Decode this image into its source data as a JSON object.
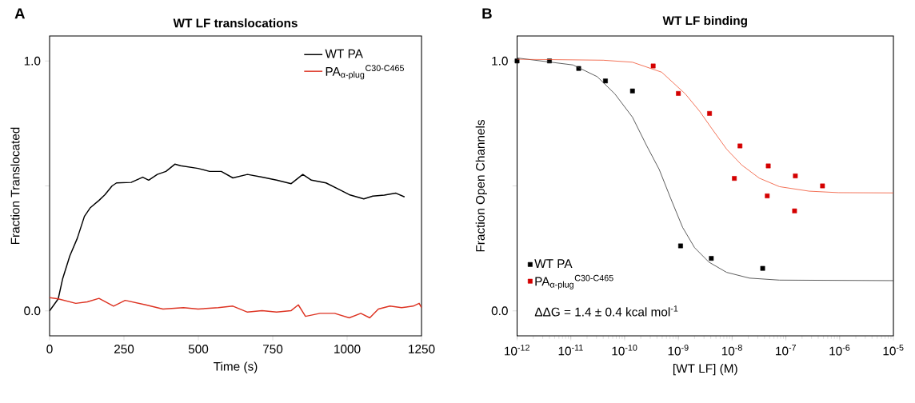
{
  "chart_data": [
    {
      "type": "line",
      "title": "WT LF translocations",
      "xlabel": "Time (s)",
      "ylabel": "Fraction Translocated",
      "annotations": [
        "A"
      ],
      "xlim": [
        0,
        1250
      ],
      "ylim": [
        -0.1,
        1.1
      ],
      "xticks": [
        0,
        250,
        500,
        750,
        1000,
        1250
      ],
      "yticks": [
        {
          "value": 0,
          "label": "0.0"
        },
        {
          "value": 0.5,
          "label": null
        },
        {
          "value": 1,
          "label": "1.0"
        }
      ],
      "legend": "top right",
      "line_style": "solid",
      "series": [
        {
          "name": "WT PA",
          "color": "#000000",
          "x": [
            0,
            29,
            44,
            68,
            93,
            117,
            137,
            166,
            186,
            210,
            225,
            274,
            313,
            333,
            362,
            391,
            421,
            440,
            499,
            538,
            577,
            616,
            665,
            714,
            763,
            812,
            851,
            880,
            929,
            978,
            1007,
            1056,
            1086,
            1125,
            1164,
            1193
          ],
          "values": [
            0,
            0.048,
            0.129,
            0.22,
            0.29,
            0.378,
            0.413,
            0.442,
            0.465,
            0.5,
            0.512,
            0.514,
            0.535,
            0.523,
            0.546,
            0.558,
            0.587,
            0.581,
            0.57,
            0.558,
            0.558,
            0.532,
            0.546,
            0.535,
            0.523,
            0.509,
            0.546,
            0.523,
            0.512,
            0.483,
            0.465,
            0.448,
            0.459,
            0.463,
            0.471,
            0.456
          ]
        },
        {
          "name": "PA$_{α-plug}$$^{C30-C465}$",
          "color": "#dd3322",
          "x": [
            0,
            29,
            88,
            127,
            166,
            215,
            254,
            323,
            381,
            450,
            499,
            567,
            616,
            665,
            714,
            763,
            812,
            836,
            860,
            909,
            958,
            1007,
            1046,
            1076,
            1105,
            1144,
            1183,
            1222,
            1242,
            1250
          ],
          "values": [
            0.053,
            0.048,
            0.03,
            0.036,
            0.05,
            0.019,
            0.042,
            0.024,
            0.007,
            0.013,
            0.007,
            0.013,
            0.019,
            -0.005,
            0.001,
            -0.005,
            0.001,
            0.024,
            -0.022,
            -0.01,
            -0.01,
            -0.028,
            -0.01,
            -0.028,
            0.007,
            0.019,
            0.013,
            0.019,
            0.03,
            0.013
          ]
        }
      ]
    },
    {
      "type": "scatter",
      "title": "WT LF binding",
      "xlabel": "[WT LF] (M)",
      "ylabel": "Fraction Open Channels",
      "annotations": [
        "B",
        "ΔΔG = 1.4 ± 0.4 kcal mol$^{-1}$"
      ],
      "log": "x",
      "xlim": [
        1e-12,
        1e-05
      ],
      "ylim": [
        -0.1,
        1.1
      ],
      "xticks": [
        {
          "value": 1e-12,
          "label": "10$^{-12}$"
        },
        {
          "value": 1e-11,
          "label": "10$^{-11}$"
        },
        {
          "value": 1e-10,
          "label": "10$^{-10}$"
        },
        {
          "value": 1e-09,
          "label": "10$^{-9}$"
        },
        {
          "value": 1e-08,
          "label": "10$^{-8}$"
        },
        {
          "value": 1e-07,
          "label": "10$^{-7}$"
        },
        {
          "value": 1e-06,
          "label": "10$^{-6}$"
        },
        {
          "value": 1e-05,
          "label": "10$^{-5}$"
        }
      ],
      "yticks": [
        {
          "value": 0,
          "label": "0.0"
        },
        {
          "value": 0.5,
          "label": null
        },
        {
          "value": 1,
          "label": "1.0"
        }
      ],
      "legend": "bottom left",
      "marker": "square",
      "series": [
        {
          "name": "WT PA",
          "color": "#000000",
          "x": [
            1e-12,
            4e-12,
            1.4e-11,
            4.4e-11,
            1.4e-10,
            1.1e-09,
            4.1e-09,
            3.7e-08
          ],
          "values": [
            1.0,
            1.0,
            0.97,
            0.92,
            0.88,
            0.26,
            0.21,
            0.17
          ]
        },
        {
          "name": "PA$_{α-plug}$$^{C30-C465}$",
          "color": "#d40000",
          "x": [
            3.4e-10,
            1e-09,
            3.8e-09,
            1.4e-08,
            1.1e-08,
            4.7e-08,
            4.5e-08,
            1.5e-07,
            1.45e-07,
            4.8e-07
          ],
          "values": [
            0.98,
            0.87,
            0.79,
            0.66,
            0.53,
            0.58,
            0.46,
            0.54,
            0.4,
            0.5
          ]
        },
        {
          "type": "line",
          "marker": "none",
          "color": "#333333",
          "x": [
            1e-12,
            1.1e-11,
            3.1e-11,
            6.6e-11,
            1.4e-10,
            2.6e-10,
            4.4e-10,
            7.2e-10,
            1.2e-09,
            2e-09,
            3.7e-09,
            7.9e-09,
            2.1e-08,
            7.6e-08,
            1e-05
          ],
          "values": [
            1.012,
            0.984,
            0.937,
            0.868,
            0.775,
            0.659,
            0.566,
            0.45,
            0.334,
            0.253,
            0.195,
            0.154,
            0.131,
            0.123,
            0.121
          ]
        },
        {
          "type": "line",
          "marker": "none",
          "color": "#f05030",
          "x": [
            1e-12,
            4e-11,
            1.4e-10,
            4.9e-10,
            1.35e-09,
            2.5e-09,
            4.2e-09,
            7.9e-09,
            1.5e-08,
            3.2e-08,
            7.6e-08,
            2.7e-07,
            9.5e-07,
            1e-05
          ],
          "values": [
            1.007,
            1.003,
            0.995,
            0.955,
            0.868,
            0.798,
            0.729,
            0.647,
            0.584,
            0.531,
            0.497,
            0.479,
            0.473,
            0.472
          ]
        }
      ]
    }
  ]
}
